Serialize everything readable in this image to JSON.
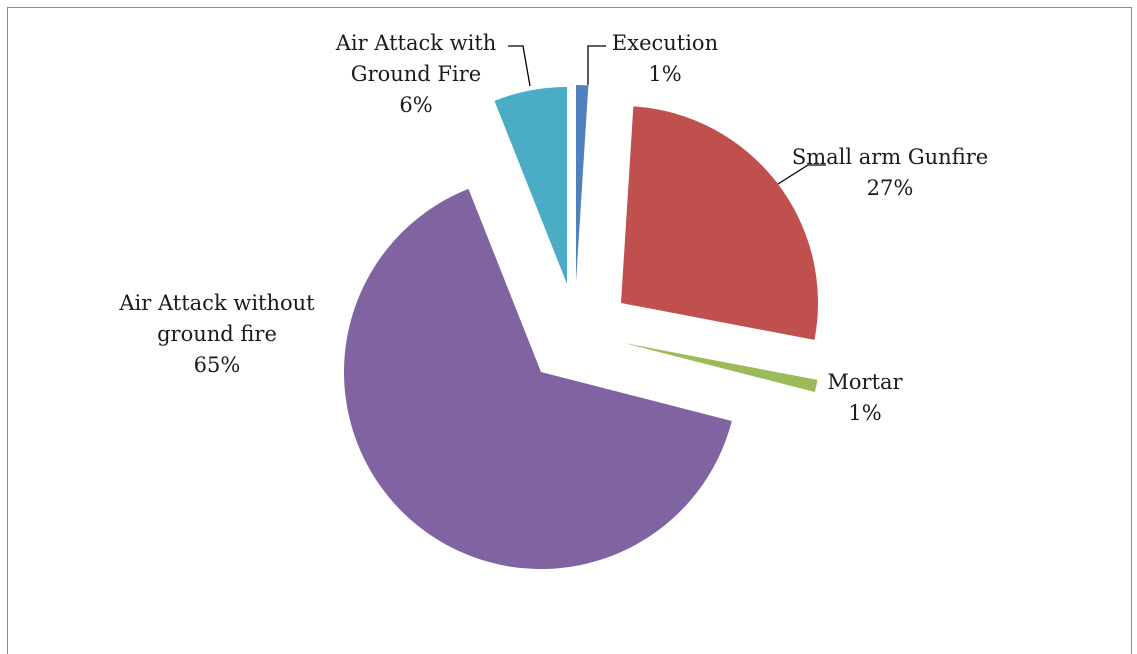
{
  "chart_data": {
    "type": "pie",
    "exploded": true,
    "slices": [
      {
        "name_lines": [
          "Execution"
        ],
        "percent_label": "1%",
        "value": 1,
        "color": "#4f81bd"
      },
      {
        "name_lines": [
          "Small arm Gunfire"
        ],
        "percent_label": "27%",
        "value": 27,
        "color": "#c0504d"
      },
      {
        "name_lines": [
          "Mortar"
        ],
        "percent_label": "1%",
        "value": 1,
        "color": "#9bbb59"
      },
      {
        "name_lines": [
          "Air Attack without",
          "ground fire"
        ],
        "percent_label": "65%",
        "value": 65,
        "color": "#8064a2"
      },
      {
        "name_lines": [
          "Air Attack with",
          "Ground Fire"
        ],
        "percent_label": "6%",
        "value": 6,
        "color": "#4bacc6"
      }
    ]
  }
}
